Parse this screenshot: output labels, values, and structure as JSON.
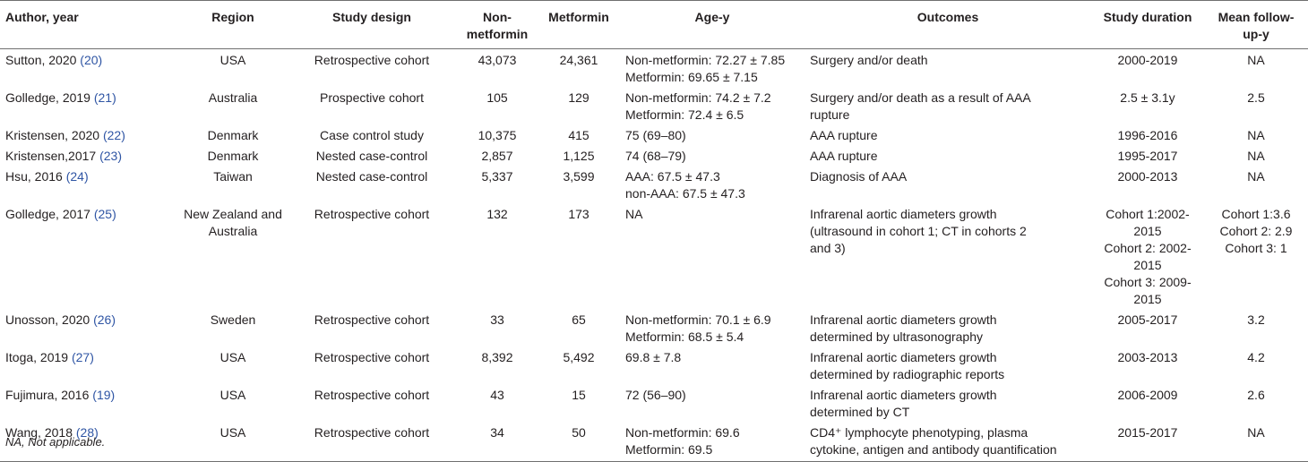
{
  "headers": {
    "author": "Author, year",
    "region": "Region",
    "design": "Study design",
    "nonmet": [
      "Non-",
      "metformin"
    ],
    "met": "Metformin",
    "age": "Age-y",
    "outcomes": "Outcomes",
    "duration": "Study duration",
    "followup": [
      "Mean follow-",
      "up-y"
    ]
  },
  "rows": [
    {
      "author": "Sutton, 2020",
      "ref": "(20)",
      "region": [
        "USA"
      ],
      "design": "Retrospective cohort",
      "nonmet": "43,073",
      "met": "24,361",
      "age": [
        "Non-metformin: 72.27 ± 7.85",
        "Metformin: 69.65 ± 7.15"
      ],
      "outcomes": [
        "Surgery and/or death"
      ],
      "duration": [
        "2000-2019"
      ],
      "followup": [
        "NA"
      ]
    },
    {
      "author": "Golledge, 2019",
      "ref": "(21)",
      "region": [
        "Australia"
      ],
      "design": "Prospective cohort",
      "nonmet": "105",
      "met": "129",
      "age": [
        "Non-metformin: 74.2 ± 7.2",
        "Metformin: 72.4 ± 6.5"
      ],
      "outcomes": [
        "Surgery and/or death as a result of AAA",
        "rupture"
      ],
      "duration": [
        "2.5 ± 3.1y"
      ],
      "followup": [
        "2.5"
      ]
    },
    {
      "author": "Kristensen, 2020",
      "ref": "(22)",
      "region": [
        "Denmark"
      ],
      "design": "Case control study",
      "nonmet": "10,375",
      "met": "415",
      "age": [
        "75 (69–80)"
      ],
      "outcomes": [
        "AAA rupture"
      ],
      "duration": [
        "1996-2016"
      ],
      "followup": [
        "NA"
      ]
    },
    {
      "author": "Kristensen,2017",
      "ref": "(23)",
      "region": [
        "Denmark"
      ],
      "design": "Nested case-control",
      "nonmet": "2,857",
      "met": "1,125",
      "age": [
        "74 (68–79)"
      ],
      "outcomes": [
        "AAA rupture"
      ],
      "duration": [
        "1995-2017"
      ],
      "followup": [
        "NA"
      ]
    },
    {
      "author": "Hsu, 2016",
      "ref": "(24)",
      "region": [
        "Taiwan"
      ],
      "design": "Nested case-control",
      "nonmet": "5,337",
      "met": "3,599",
      "age": [
        "AAA: 67.5 ± 47.3",
        "non-AAA: 67.5 ± 47.3"
      ],
      "outcomes": [
        "Diagnosis of AAA"
      ],
      "duration": [
        "2000-2013"
      ],
      "followup": [
        "NA"
      ]
    },
    {
      "author": "Golledge, 2017",
      "ref": "(25)",
      "region": [
        "New Zealand and",
        "Australia"
      ],
      "design": "Retrospective cohort",
      "nonmet": "132",
      "met": "173",
      "age": [
        "NA"
      ],
      "outcomes": [
        "Infrarenal aortic diameters growth",
        "(ultrasound in cohort 1; CT in cohorts 2",
        "and 3)"
      ],
      "duration": [
        "Cohort 1:2002-2015",
        "Cohort 2: 2002-2015",
        "Cohort 3: 2009-2015"
      ],
      "followup": [
        "Cohort 1:3.6",
        "Cohort 2: 2.9",
        "Cohort 3: 1"
      ]
    },
    {
      "author": "Unosson, 2020",
      "ref": "(26)",
      "region": [
        "Sweden"
      ],
      "design": "Retrospective cohort",
      "nonmet": "33",
      "met": "65",
      "age": [
        "Non-metformin: 70.1 ± 6.9",
        "Metformin: 68.5 ± 5.4"
      ],
      "outcomes": [
        "Infrarenal aortic diameters growth",
        "determined by ultrasonography"
      ],
      "duration": [
        "2005-2017"
      ],
      "followup": [
        "3.2"
      ]
    },
    {
      "author": "Itoga, 2019",
      "ref": "(27)",
      "region": [
        "USA"
      ],
      "design": "Retrospective cohort",
      "nonmet": "8,392",
      "met": "5,492",
      "age": [
        "69.8 ± 7.8"
      ],
      "outcomes": [
        "Infrarenal aortic diameters growth",
        "determined by radiographic reports"
      ],
      "duration": [
        "2003-2013"
      ],
      "followup": [
        "4.2"
      ]
    },
    {
      "author": "Fujimura, 2016",
      "ref": "(19)",
      "region": [
        "USA"
      ],
      "design": "Retrospective cohort",
      "nonmet": "43",
      "met": "15",
      "age": [
        "72 (56–90)"
      ],
      "outcomes": [
        "Infrarenal aortic diameters growth",
        "determined by CT"
      ],
      "duration": [
        "2006-2009"
      ],
      "followup": [
        "2.6"
      ]
    },
    {
      "author": "Wang, 2018",
      "ref": "(28)",
      "region": [
        "USA"
      ],
      "design": "Retrospective cohort",
      "nonmet": "34",
      "met": "50",
      "age": [
        "Non-metformin: 69.6",
        "Metformin: 69.5"
      ],
      "outcomes": [
        "CD4⁺ lymphocyte phenotyping, plasma",
        "cytokine, antigen and antibody quantification"
      ],
      "duration": [
        "2015-2017"
      ],
      "followup": [
        "NA"
      ]
    }
  ],
  "footnote": "NA, Not applicable."
}
